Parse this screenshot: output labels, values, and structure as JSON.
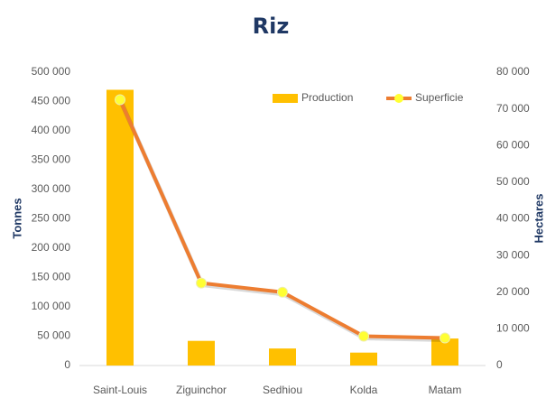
{
  "chart_data": {
    "type": "bar",
    "title": "Riz",
    "categories": [
      "Saint-Louis",
      "Ziguinchor",
      "Sedhiou",
      "Kolda",
      "Matam"
    ],
    "series": [
      {
        "name": "Production",
        "type": "bar",
        "color": "#FFC000",
        "values": [
          470000,
          42000,
          29000,
          22000,
          46000
        ]
      },
      {
        "name": "Superficie",
        "type": "line",
        "axis": "y2",
        "color": "#ED7D31",
        "marker_color": "#FFFF33",
        "values": [
          72500,
          22500,
          20000,
          8000,
          7500
        ]
      }
    ],
    "ylabel": "Tonnes",
    "y2label": "Hectares",
    "ylim": [
      0,
      500000
    ],
    "yticks": [
      0,
      {
        "value": 50000,
        "label": "50 000"
      },
      {
        "value": 100000,
        "label": "100 000"
      },
      {
        "value": 150000,
        "label": "150 000"
      },
      {
        "value": 200000,
        "label": "200 000"
      },
      {
        "value": 250000,
        "label": "250 000"
      },
      {
        "value": 300000,
        "label": "300 000"
      },
      {
        "value": 350000,
        "label": "350 000"
      },
      {
        "value": 400000,
        "label": "400 000"
      },
      {
        "value": 450000,
        "label": "450 000"
      },
      {
        "value": 500000,
        "label": "500 000"
      }
    ],
    "y2lim": [
      0,
      80000
    ],
    "y2ticks": [
      0,
      {
        "value": 10000,
        "label": "10 000"
      },
      {
        "value": 20000,
        "label": "20 000"
      },
      {
        "value": 30000,
        "label": "30 000"
      },
      {
        "value": 40000,
        "label": "40 000"
      },
      {
        "value": 50000,
        "label": "50 000"
      },
      {
        "value": 60000,
        "label": "60 000"
      },
      {
        "value": 70000,
        "label": "70 000"
      },
      {
        "value": 80000,
        "label": "80 000"
      }
    ],
    "legend": "upper right",
    "grid": false
  }
}
